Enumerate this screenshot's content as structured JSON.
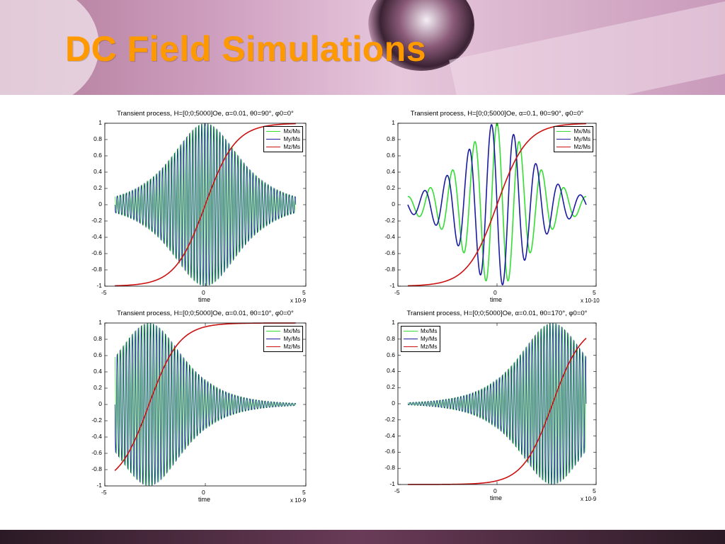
{
  "slide": {
    "title": "DC Field Simulations"
  },
  "chart_data": [
    {
      "type": "line",
      "title": "Transient process, H=[0;0;5000]Oe, α=0.01, θ0=90°, φ0=0°",
      "xlabel": "time",
      "x_multiplier": "x 10-9",
      "xlim": [
        -5,
        5
      ],
      "ylim": [
        -1,
        1
      ],
      "xticks": [
        "-5",
        "0",
        "5"
      ],
      "yticks": [
        "1",
        "0.8",
        "0.6",
        "0.4",
        "0.2",
        "0",
        "-0.2",
        "-0.4",
        "-0.6",
        "-0.8",
        "-1"
      ],
      "legend_placement": "top-right",
      "x_range": [
        -4.5,
        4.5
      ],
      "series": [
        {
          "name": "Mx/Ms",
          "color": "#33dd33",
          "model": "oscillation",
          "envelope_center": 0,
          "envelope_width": 1.5,
          "cycles": 60,
          "phase": 0
        },
        {
          "name": "My/Ms",
          "color": "#1a1aa0",
          "model": "oscillation",
          "envelope_center": 0,
          "envelope_width": 1.5,
          "cycles": 60,
          "phase": 1.5708
        },
        {
          "name": "Mz/Ms",
          "color": "#cc1111",
          "model": "tanh",
          "center": 0,
          "width": 1.5
        }
      ]
    },
    {
      "type": "line",
      "title": "Transient process, H=[0;0;5000]Oe, α=0.1, θ0=90°, φ0=0°",
      "xlabel": "time",
      "x_multiplier": "x 10-10",
      "xlim": [
        -5,
        5
      ],
      "ylim": [
        -1,
        1
      ],
      "xticks": [
        "-5",
        "0",
        "5"
      ],
      "yticks": [
        "1",
        "0.8",
        "0.6",
        "0.4",
        "0.2",
        "0",
        "-0.2",
        "-0.4",
        "-0.6",
        "-0.8",
        "-1"
      ],
      "legend_placement": "top-right",
      "x_range": [
        -4.5,
        4.5
      ],
      "series": [
        {
          "name": "Mx/Ms",
          "color": "#33dd33",
          "model": "oscillation",
          "envelope_center": 0,
          "envelope_width": 1.5,
          "cycles": 8,
          "phase": 0
        },
        {
          "name": "My/Ms",
          "color": "#1a1aa0",
          "model": "oscillation",
          "envelope_center": 0,
          "envelope_width": 1.5,
          "cycles": 8,
          "phase": 1.5708
        },
        {
          "name": "Mz/Ms",
          "color": "#cc1111",
          "model": "tanh",
          "center": 0,
          "width": 1.5
        }
      ]
    },
    {
      "type": "line",
      "title": "Transient process, H=[0;0;5000]Oe, α=0.01, θ0=10°, φ0=0°",
      "xlabel": "time",
      "x_multiplier": "x 10-9",
      "xlim": [
        -5,
        5
      ],
      "ylim": [
        -1,
        1
      ],
      "xticks": [
        "-5",
        "0",
        "5"
      ],
      "yticks": [
        "1",
        "0.8",
        "0.6",
        "0.4",
        "0.2",
        "0",
        "-0.2",
        "-0.4",
        "-0.6",
        "-0.8",
        "-1"
      ],
      "legend_placement": "top-right",
      "x_range": [
        -4.5,
        4.5
      ],
      "series": [
        {
          "name": "Mx/Ms",
          "color": "#33dd33",
          "model": "oscillation",
          "envelope_center": -2.8,
          "envelope_width": 1.5,
          "cycles": 60,
          "phase": 0
        },
        {
          "name": "My/Ms",
          "color": "#1a1aa0",
          "model": "oscillation",
          "envelope_center": -2.8,
          "envelope_width": 1.5,
          "cycles": 60,
          "phase": 1.5708
        },
        {
          "name": "Mz/Ms",
          "color": "#cc1111",
          "model": "tanh",
          "center": -2.8,
          "width": 1.5
        }
      ]
    },
    {
      "type": "line",
      "title": "Transient process, H=[0;0;5000]Oe, α=0.01, θ0=170°, φ0=0°",
      "xlabel": "time",
      "x_multiplier": "x 10-9",
      "xlim": [
        -5,
        5
      ],
      "ylim": [
        -1,
        1
      ],
      "xticks": [
        "-5",
        "0",
        "5"
      ],
      "yticks": [
        "1",
        "0.8",
        "0.6",
        "0.4",
        "0.2",
        "0",
        "-0.2",
        "-0.4",
        "-0.6",
        "-0.8",
        "-1"
      ],
      "legend_placement": "top-left",
      "x_range": [
        -4.5,
        4.5
      ],
      "series": [
        {
          "name": "Mx/Ms",
          "color": "#33dd33",
          "model": "oscillation",
          "envelope_center": 2.8,
          "envelope_width": 1.5,
          "cycles": 60,
          "phase": 0
        },
        {
          "name": "My/Ms",
          "color": "#1a1aa0",
          "model": "oscillation",
          "envelope_center": 2.8,
          "envelope_width": 1.5,
          "cycles": 60,
          "phase": 1.5708
        },
        {
          "name": "Mz/Ms",
          "color": "#cc1111",
          "model": "tanh",
          "center": 2.8,
          "width": 1.5
        }
      ]
    }
  ]
}
